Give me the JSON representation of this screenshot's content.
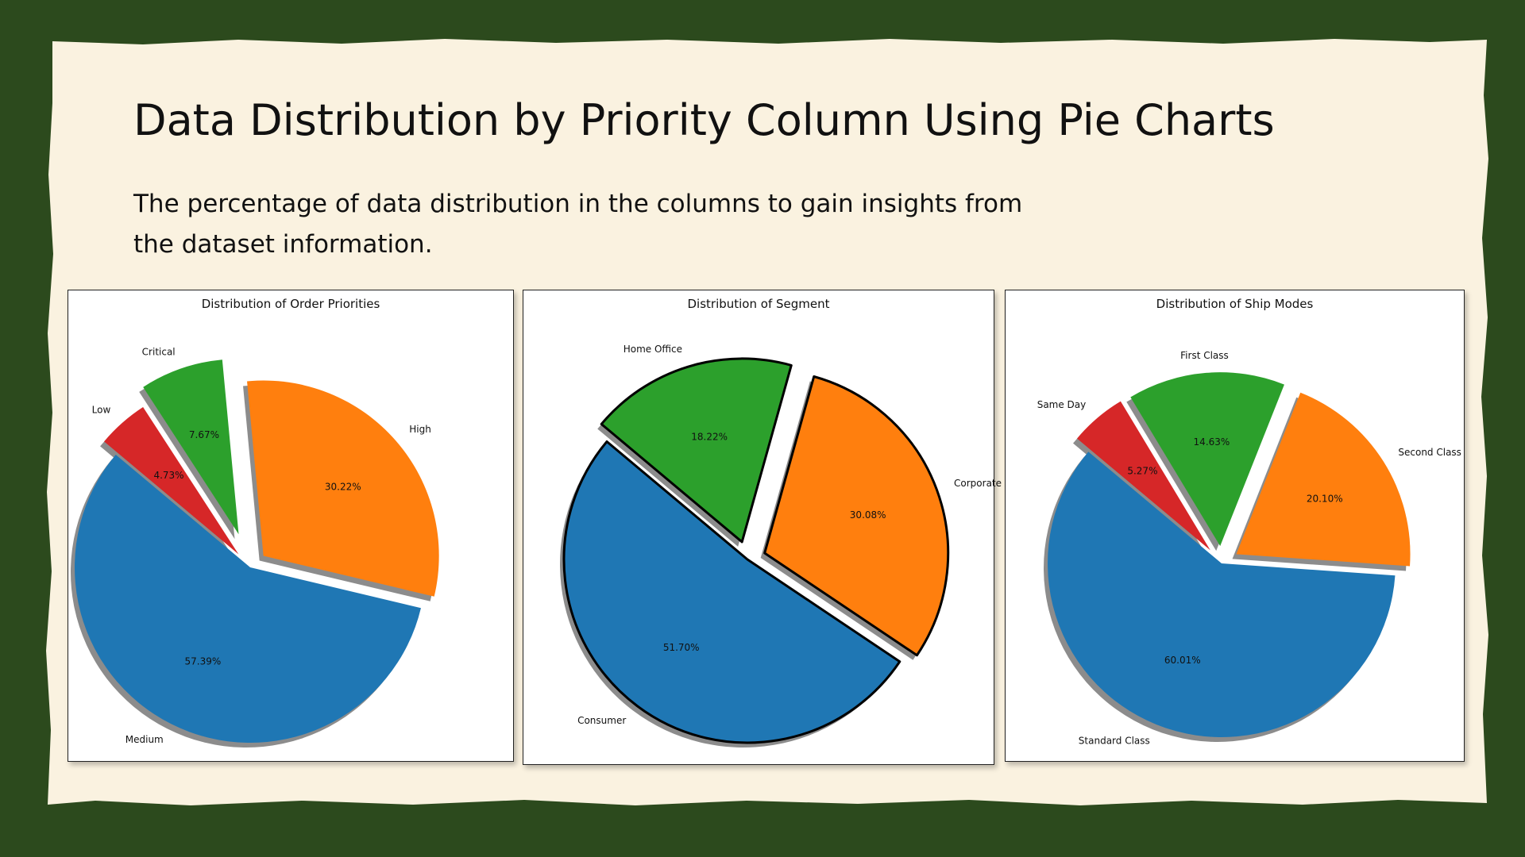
{
  "slide": {
    "title": "Data Distribution by Priority Column Using Pie Charts",
    "subtitle": "The percentage of data distribution in the columns to gain insights from the dataset information."
  },
  "colors": {
    "background": "#2c4a1d",
    "paper": "#faf2e0",
    "blue": "#1f77b4",
    "orange": "#ff7f0e",
    "green": "#2ca02c",
    "red": "#d62728"
  },
  "chart_data": [
    {
      "type": "pie",
      "title": "Distribution of Order Priorities",
      "start_angle_deg": 140,
      "counterclockwise": true,
      "shadow": true,
      "edge": false,
      "slices": [
        {
          "label": "Medium",
          "value": 57.39,
          "value_label": "57.39%",
          "color": "#1f77b4",
          "explode": 0
        },
        {
          "label": "High",
          "value": 30.22,
          "value_label": "30.22%",
          "color": "#ff7f0e",
          "explode": 0.1
        },
        {
          "label": "Critical",
          "value": 7.67,
          "value_label": "7.67%",
          "color": "#2ca02c",
          "explode": 0.2
        },
        {
          "label": "Low",
          "value": 4.73,
          "value_label": "4.73%",
          "color": "#d62728",
          "explode": 0.1
        }
      ]
    },
    {
      "type": "pie",
      "title": "Distribution of Segment",
      "start_angle_deg": 140,
      "counterclockwise": true,
      "shadow": true,
      "edge": true,
      "slices": [
        {
          "label": "Consumer",
          "value": 51.7,
          "value_label": "51.70%",
          "color": "#1f77b4",
          "explode": 0
        },
        {
          "label": "Corporate",
          "value": 30.08,
          "value_label": "30.08%",
          "color": "#ff7f0e",
          "explode": 0.1
        },
        {
          "label": "Home Office",
          "value": 18.22,
          "value_label": "18.22%",
          "color": "#2ca02c",
          "explode": 0.1
        }
      ]
    },
    {
      "type": "pie",
      "title": "Distribution of Ship Modes",
      "start_angle_deg": 140,
      "counterclockwise": true,
      "shadow": true,
      "edge": false,
      "slices": [
        {
          "label": "Standard Class",
          "value": 60.01,
          "value_label": "60.01%",
          "color": "#1f77b4",
          "explode": 0
        },
        {
          "label": "Second Class",
          "value": 20.1,
          "value_label": "20.10%",
          "color": "#ff7f0e",
          "explode": 0.1
        },
        {
          "label": "First Class",
          "value": 14.63,
          "value_label": "14.63%",
          "color": "#2ca02c",
          "explode": 0.1
        },
        {
          "label": "Same Day",
          "value": 5.27,
          "value_label": "5.27%",
          "color": "#d62728",
          "explode": 0.1
        }
      ]
    }
  ]
}
